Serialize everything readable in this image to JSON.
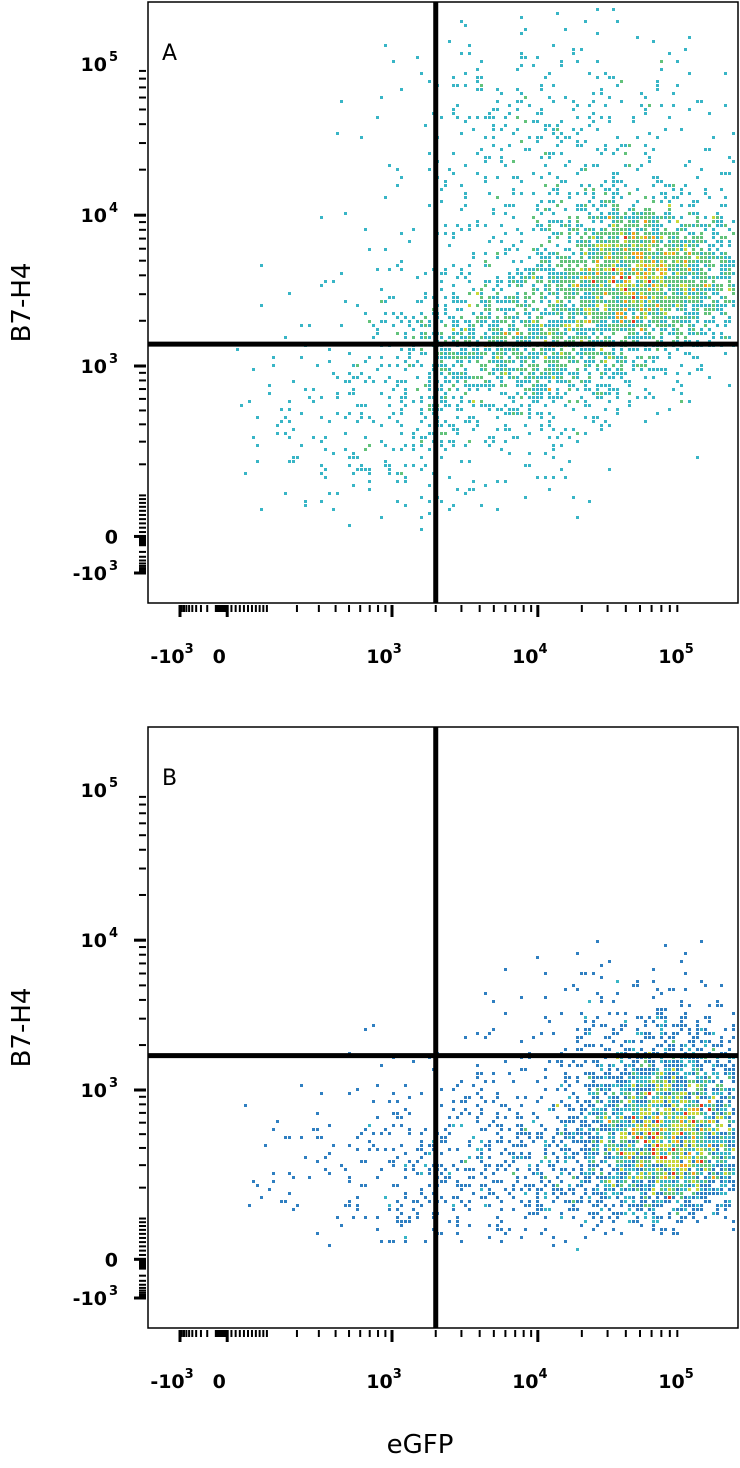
{
  "chart_data": [
    {
      "type": "scatter",
      "panel_label": "A",
      "xlabel": "eGFP",
      "ylabel": "B7-H4",
      "x_scale": "biexponential",
      "y_scale": "biexponential",
      "x_ticks": [
        {
          "base": "-10",
          "exp": "3",
          "value": -1000
        },
        {
          "base": "0",
          "exp": "",
          "value": 0
        },
        {
          "base": "10",
          "exp": "3",
          "value": 1000
        },
        {
          "base": "10",
          "exp": "4",
          "value": 10000
        },
        {
          "base": "10",
          "exp": "5",
          "value": 100000
        }
      ],
      "y_ticks": [
        {
          "base": "10",
          "exp": "5",
          "value": 100000
        },
        {
          "base": "10",
          "exp": "4",
          "value": 10000
        },
        {
          "base": "10",
          "exp": "3",
          "value": 1000
        },
        {
          "base": "0",
          "exp": "",
          "value": 0
        },
        {
          "base": "-10",
          "exp": "3",
          "value": -1000
        }
      ],
      "quadrant_gate": {
        "x": 2000,
        "y": 1400
      },
      "populations": [
        {
          "x_center": 50000,
          "y_center": 4000,
          "x_spread_decades": 0.35,
          "y_spread_decades": 0.25,
          "events": 2600
        },
        {
          "x_center": 9000,
          "y_center": 1300,
          "x_spread_decades": 0.45,
          "y_spread_decades": 0.25,
          "events": 1300
        },
        {
          "x_center": 12000,
          "y_center": 25000,
          "x_spread_decades": 0.6,
          "y_spread_decades": 0.45,
          "events": 450
        },
        {
          "x_center": 1500,
          "y_center": 500,
          "x_spread_decades": 0.6,
          "y_spread_decades": 0.45,
          "events": 380
        }
      ],
      "density_colors": [
        "#2b4ba1",
        "#2f7fc1",
        "#38b5c6",
        "#62c27a",
        "#c8d83a",
        "#f2a31f",
        "#e6391e"
      ]
    },
    {
      "type": "scatter",
      "panel_label": "B",
      "xlabel": "eGFP",
      "ylabel": "B7-H4",
      "x_scale": "biexponential",
      "y_scale": "biexponential",
      "x_ticks": [
        {
          "base": "-10",
          "exp": "3",
          "value": -1000
        },
        {
          "base": "0",
          "exp": "",
          "value": 0
        },
        {
          "base": "10",
          "exp": "3",
          "value": 1000
        },
        {
          "base": "10",
          "exp": "4",
          "value": 10000
        },
        {
          "base": "10",
          "exp": "5",
          "value": 100000
        }
      ],
      "y_ticks": [
        {
          "base": "10",
          "exp": "5",
          "value": 100000
        },
        {
          "base": "10",
          "exp": "4",
          "value": 10000
        },
        {
          "base": "10",
          "exp": "3",
          "value": 1000
        },
        {
          "base": "0",
          "exp": "",
          "value": 0
        },
        {
          "base": "-10",
          "exp": "3",
          "value": -1000
        }
      ],
      "quadrant_gate": {
        "x": 2000,
        "y": 1700
      },
      "populations": [
        {
          "x_center": 80000,
          "y_center": 500,
          "x_spread_decades": 0.3,
          "y_spread_decades": 0.3,
          "events": 3000
        },
        {
          "x_center": 8000,
          "y_center": 300,
          "x_spread_decades": 0.6,
          "y_spread_decades": 0.35,
          "events": 700
        },
        {
          "x_center": 50000,
          "y_center": 2500,
          "x_spread_decades": 0.4,
          "y_spread_decades": 0.25,
          "events": 180
        },
        {
          "x_center": 600,
          "y_center": 300,
          "x_spread_decades": 0.5,
          "y_spread_decades": 0.35,
          "events": 80
        }
      ],
      "density_colors": [
        "#2b4ba1",
        "#2f7fc1",
        "#38b5c6",
        "#62c27a",
        "#c8d83a",
        "#f2a31f",
        "#e6391e"
      ]
    }
  ]
}
